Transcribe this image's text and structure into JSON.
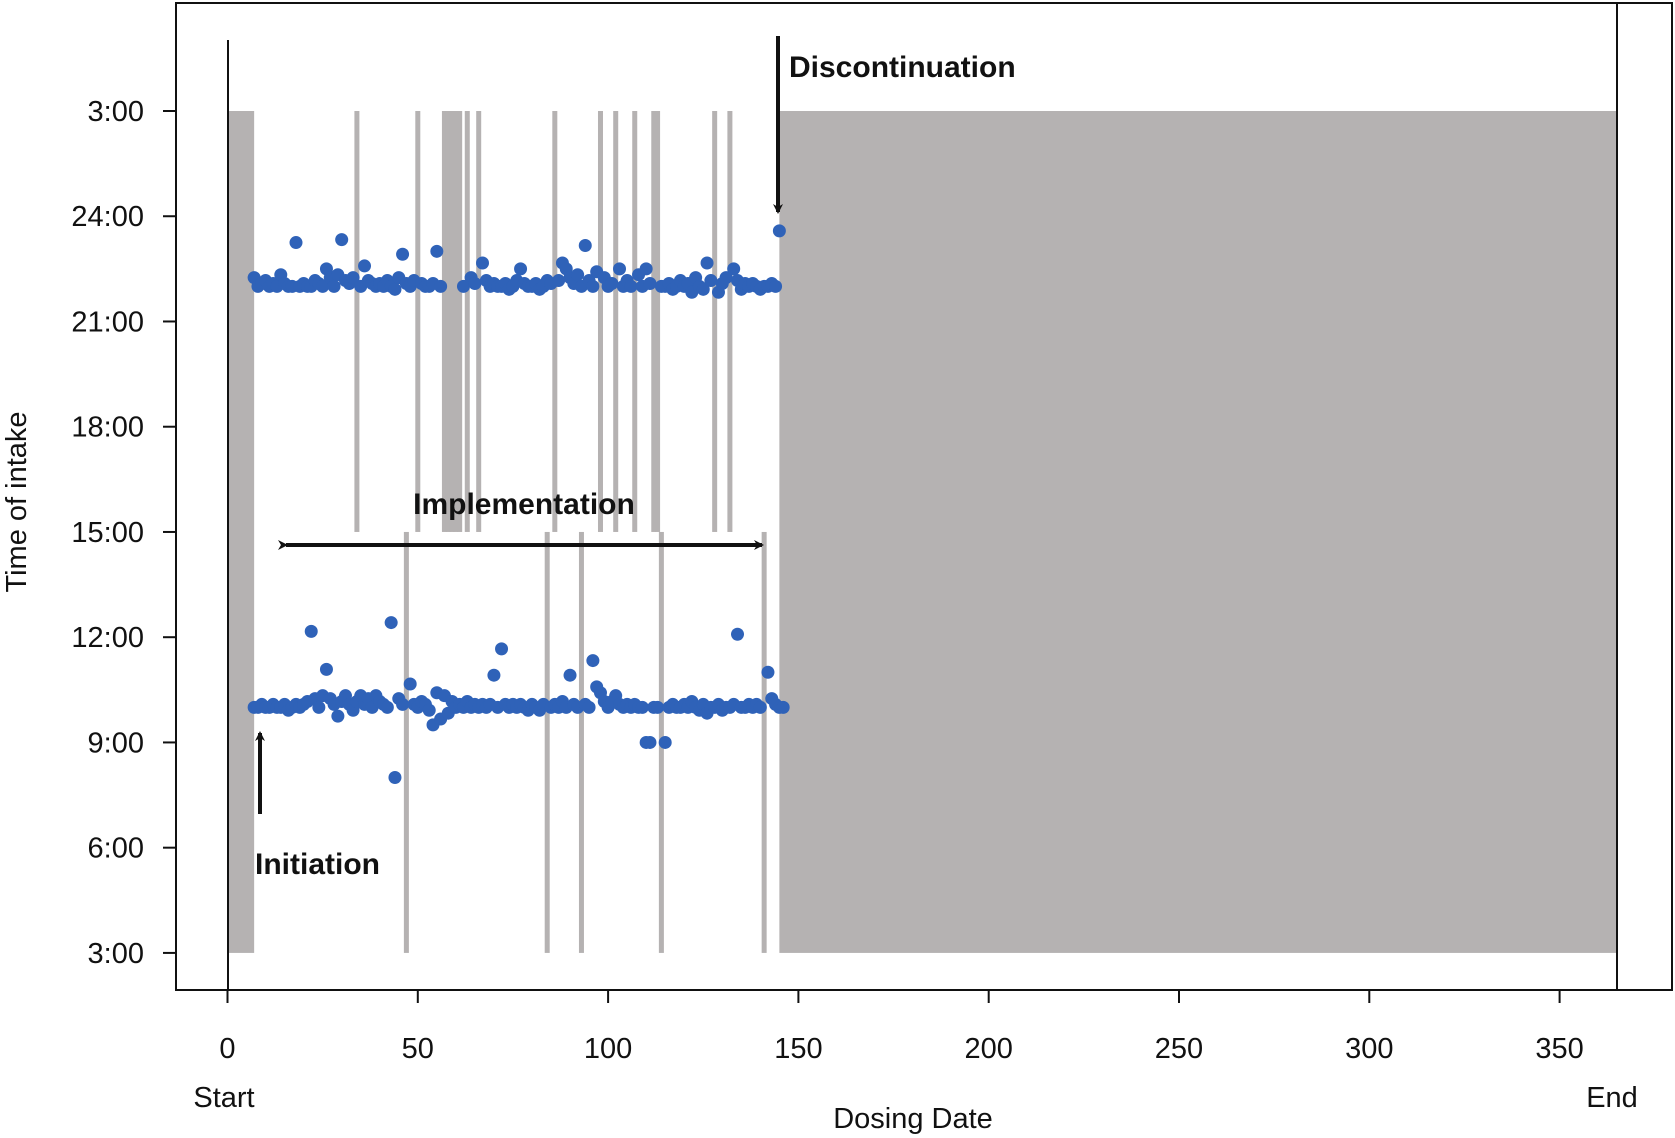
{
  "chart_data": {
    "type": "scatter",
    "title": "",
    "xlabel": "Dosing Date",
    "ylabel": "Time of intake",
    "xlim": [
      0,
      365
    ],
    "ylim": [
      "3:00",
      "3:00 (next day)"
    ],
    "x_ticks": [
      "0",
      "50",
      "100",
      "150",
      "200",
      "250",
      "300",
      "350"
    ],
    "x_tick_values": [
      0,
      50,
      100,
      150,
      200,
      250,
      300,
      350
    ],
    "x_extra_labels": {
      "start": "Start",
      "end": "End"
    },
    "y_ticks": [
      "3:00",
      "24:00",
      "21:00",
      "18:00",
      "15:00",
      "12:00",
      "9:00",
      "6:00",
      "3:00"
    ],
    "grid": false,
    "colors": {
      "points": "#2f62b8",
      "shaded": "#b5b2b2",
      "frame": "#111111"
    },
    "shaded_periods_days": [
      [
        0,
        7
      ],
      [
        145,
        365
      ]
    ],
    "missed_evening_days": [
      34,
      50,
      57,
      58,
      59,
      60,
      61,
      63,
      66,
      86,
      98,
      102,
      107,
      112,
      113,
      128,
      132
    ],
    "missed_morning_days": [
      47,
      84,
      93,
      114,
      141
    ],
    "annotations": {
      "discontinuation": "Discontinuation",
      "implementation": "Implementation",
      "initiation": "Initiation"
    },
    "series": [
      {
        "points": [
          [
            7,
            "22:15"
          ],
          [
            8,
            "22:00"
          ],
          [
            9,
            "22:05"
          ],
          [
            10,
            "22:10"
          ],
          [
            11,
            "22:00"
          ],
          [
            12,
            "22:05"
          ],
          [
            13,
            "22:00"
          ],
          [
            14,
            "22:20"
          ],
          [
            15,
            "22:05"
          ],
          [
            16,
            "22:00"
          ],
          [
            17,
            "22:00"
          ],
          [
            18,
            "23:15"
          ],
          [
            19,
            "22:00"
          ],
          [
            20,
            "22:05"
          ],
          [
            21,
            "22:00"
          ],
          [
            22,
            "22:00"
          ],
          [
            23,
            "22:10"
          ],
          [
            24,
            "22:05"
          ],
          [
            25,
            "22:00"
          ],
          [
            26,
            "22:30"
          ],
          [
            27,
            "22:15"
          ],
          [
            28,
            "22:00"
          ],
          [
            29,
            "22:20"
          ],
          [
            30,
            "23:20"
          ],
          [
            31,
            "22:10"
          ],
          [
            32,
            "22:05"
          ],
          [
            33,
            "22:15"
          ],
          [
            35,
            "22:00"
          ],
          [
            36,
            "22:35"
          ],
          [
            37,
            "22:10"
          ],
          [
            38,
            "22:05"
          ],
          [
            39,
            "22:00"
          ],
          [
            40,
            "22:05"
          ],
          [
            41,
            "22:00"
          ],
          [
            42,
            "22:10"
          ],
          [
            43,
            "22:00"
          ],
          [
            44,
            "21:55"
          ],
          [
            45,
            "22:15"
          ],
          [
            46,
            "22:55"
          ],
          [
            47,
            "22:05"
          ],
          [
            48,
            "22:00"
          ],
          [
            49,
            "22:10"
          ],
          [
            51,
            "22:05"
          ],
          [
            52,
            "22:00"
          ],
          [
            53,
            "22:00"
          ],
          [
            54,
            "22:05"
          ],
          [
            55,
            "23:00"
          ],
          [
            56,
            "22:00"
          ],
          [
            62,
            "22:00"
          ],
          [
            64,
            "22:15"
          ],
          [
            65,
            "22:05"
          ],
          [
            67,
            "22:40"
          ],
          [
            68,
            "22:10"
          ],
          [
            69,
            "22:00"
          ],
          [
            70,
            "22:05"
          ],
          [
            71,
            "22:00"
          ],
          [
            72,
            "22:00"
          ],
          [
            73,
            "22:05"
          ],
          [
            74,
            "21:55"
          ],
          [
            75,
            "22:00"
          ],
          [
            76,
            "22:10"
          ],
          [
            77,
            "22:30"
          ],
          [
            78,
            "22:05"
          ],
          [
            79,
            "22:00"
          ],
          [
            80,
            "22:00"
          ],
          [
            81,
            "22:05"
          ],
          [
            82,
            "21:55"
          ],
          [
            83,
            "22:00"
          ],
          [
            84,
            "22:10"
          ],
          [
            85,
            "22:05"
          ],
          [
            87,
            "22:10"
          ],
          [
            88,
            "22:40"
          ],
          [
            89,
            "22:30"
          ],
          [
            90,
            "22:15"
          ],
          [
            91,
            "22:05"
          ],
          [
            92,
            "22:20"
          ],
          [
            93,
            "22:00"
          ],
          [
            94,
            "23:10"
          ],
          [
            95,
            "22:10"
          ],
          [
            96,
            "22:00"
          ],
          [
            97,
            "22:25"
          ],
          [
            99,
            "22:15"
          ],
          [
            100,
            "22:00"
          ],
          [
            101,
            "22:05"
          ],
          [
            103,
            "22:30"
          ],
          [
            104,
            "22:00"
          ],
          [
            105,
            "22:10"
          ],
          [
            106,
            "22:00"
          ],
          [
            108,
            "22:20"
          ],
          [
            109,
            "22:00"
          ],
          [
            110,
            "22:30"
          ],
          [
            111,
            "22:05"
          ],
          [
            114,
            "22:00"
          ],
          [
            115,
            "22:00"
          ],
          [
            116,
            "22:05"
          ],
          [
            117,
            "21:55"
          ],
          [
            118,
            "22:00"
          ],
          [
            119,
            "22:10"
          ],
          [
            120,
            "22:00"
          ],
          [
            121,
            "22:05"
          ],
          [
            122,
            "21:50"
          ],
          [
            123,
            "22:15"
          ],
          [
            124,
            "22:00"
          ],
          [
            125,
            "21:55"
          ],
          [
            126,
            "22:40"
          ],
          [
            127,
            "22:10"
          ],
          [
            129,
            "21:50"
          ],
          [
            130,
            "22:05"
          ],
          [
            131,
            "22:15"
          ],
          [
            133,
            "22:30"
          ],
          [
            134,
            "22:10"
          ],
          [
            135,
            "21:55"
          ],
          [
            136,
            "22:05"
          ],
          [
            137,
            "22:00"
          ],
          [
            138,
            "22:05"
          ],
          [
            139,
            "22:00"
          ],
          [
            140,
            "21:55"
          ],
          [
            141,
            "22:00"
          ],
          [
            142,
            "22:00"
          ],
          [
            143,
            "22:05"
          ],
          [
            144,
            "22:00"
          ],
          [
            145,
            "23:35"
          ]
        ]
      },
      {
        "points": [
          [
            7,
            "10:00"
          ],
          [
            8,
            "10:00"
          ],
          [
            9,
            "10:05"
          ],
          [
            10,
            "10:00"
          ],
          [
            11,
            "10:00"
          ],
          [
            12,
            "10:05"
          ],
          [
            13,
            "10:00"
          ],
          [
            14,
            "10:00"
          ],
          [
            15,
            "10:05"
          ],
          [
            16,
            "09:55"
          ],
          [
            17,
            "10:00"
          ],
          [
            18,
            "10:05"
          ],
          [
            19,
            "10:00"
          ],
          [
            20,
            "10:05"
          ],
          [
            21,
            "10:10"
          ],
          [
            22,
            "12:10"
          ],
          [
            23,
            "10:15"
          ],
          [
            24,
            "10:00"
          ],
          [
            25,
            "10:20"
          ],
          [
            26,
            "11:05"
          ],
          [
            27,
            "10:15"
          ],
          [
            28,
            "10:05"
          ],
          [
            29,
            "09:45"
          ],
          [
            30,
            "10:10"
          ],
          [
            31,
            "10:20"
          ],
          [
            32,
            "10:05"
          ],
          [
            33,
            "09:55"
          ],
          [
            34,
            "10:10"
          ],
          [
            35,
            "10:20"
          ],
          [
            36,
            "10:05"
          ],
          [
            37,
            "10:15"
          ],
          [
            38,
            "10:00"
          ],
          [
            39,
            "10:20"
          ],
          [
            40,
            "10:10"
          ],
          [
            41,
            "10:05"
          ],
          [
            42,
            "10:00"
          ],
          [
            43,
            "12:25"
          ],
          [
            44,
            "08:00"
          ],
          [
            45,
            "10:15"
          ],
          [
            46,
            "10:05"
          ],
          [
            48,
            "10:40"
          ],
          [
            49,
            "10:05"
          ],
          [
            50,
            "10:00"
          ],
          [
            51,
            "10:10"
          ],
          [
            52,
            "10:05"
          ],
          [
            53,
            "09:55"
          ],
          [
            54,
            "09:30"
          ],
          [
            55,
            "10:25"
          ],
          [
            56,
            "09:40"
          ],
          [
            57,
            "10:20"
          ],
          [
            58,
            "09:50"
          ],
          [
            59,
            "10:10"
          ],
          [
            60,
            "10:00"
          ],
          [
            61,
            "10:05"
          ],
          [
            62,
            "10:00"
          ],
          [
            63,
            "10:10"
          ],
          [
            64,
            "10:00"
          ],
          [
            65,
            "10:05"
          ],
          [
            66,
            "10:00"
          ],
          [
            67,
            "10:05"
          ],
          [
            68,
            "10:00"
          ],
          [
            69,
            "10:05"
          ],
          [
            70,
            "10:55"
          ],
          [
            71,
            "10:00"
          ],
          [
            72,
            "11:40"
          ],
          [
            73,
            "10:05"
          ],
          [
            74,
            "10:00"
          ],
          [
            75,
            "10:05"
          ],
          [
            76,
            "10:00"
          ],
          [
            77,
            "10:05"
          ],
          [
            78,
            "10:00"
          ],
          [
            79,
            "09:55"
          ],
          [
            80,
            "10:05"
          ],
          [
            81,
            "10:00"
          ],
          [
            82,
            "09:55"
          ],
          [
            83,
            "10:05"
          ],
          [
            85,
            "10:00"
          ],
          [
            86,
            "10:05"
          ],
          [
            87,
            "10:00"
          ],
          [
            88,
            "10:10"
          ],
          [
            89,
            "10:00"
          ],
          [
            90,
            "10:55"
          ],
          [
            91,
            "10:05"
          ],
          [
            92,
            "10:00"
          ],
          [
            94,
            "10:05"
          ],
          [
            95,
            "10:00"
          ],
          [
            96,
            "11:20"
          ],
          [
            97,
            "10:35"
          ],
          [
            98,
            "10:25"
          ],
          [
            99,
            "10:10"
          ],
          [
            100,
            "10:00"
          ],
          [
            101,
            "10:10"
          ],
          [
            102,
            "10:20"
          ],
          [
            103,
            "10:05"
          ],
          [
            104,
            "10:00"
          ],
          [
            105,
            "10:05"
          ],
          [
            106,
            "10:00"
          ],
          [
            107,
            "10:05"
          ],
          [
            108,
            "10:00"
          ],
          [
            109,
            "10:00"
          ],
          [
            110,
            "09:00"
          ],
          [
            111,
            "09:00"
          ],
          [
            112,
            "10:00"
          ],
          [
            113,
            "10:00"
          ],
          [
            115,
            "09:00"
          ],
          [
            116,
            "10:00"
          ],
          [
            117,
            "10:05"
          ],
          [
            118,
            "10:00"
          ],
          [
            119,
            "10:00"
          ],
          [
            120,
            "10:05"
          ],
          [
            121,
            "10:00"
          ],
          [
            122,
            "10:10"
          ],
          [
            123,
            "10:00"
          ],
          [
            124,
            "09:55"
          ],
          [
            125,
            "10:05"
          ],
          [
            126,
            "09:50"
          ],
          [
            127,
            "10:00"
          ],
          [
            128,
            "10:00"
          ],
          [
            129,
            "10:05"
          ],
          [
            130,
            "09:55"
          ],
          [
            131,
            "10:00"
          ],
          [
            132,
            "10:00"
          ],
          [
            133,
            "10:05"
          ],
          [
            134,
            "12:05"
          ],
          [
            135,
            "10:00"
          ],
          [
            136,
            "10:00"
          ],
          [
            137,
            "10:05"
          ],
          [
            138,
            "10:00"
          ],
          [
            139,
            "10:05"
          ],
          [
            140,
            "10:00"
          ],
          [
            142,
            "11:00"
          ],
          [
            143,
            "10:15"
          ],
          [
            144,
            "10:05"
          ],
          [
            145,
            "10:00"
          ],
          [
            146,
            "10:00"
          ]
        ]
      }
    ]
  }
}
